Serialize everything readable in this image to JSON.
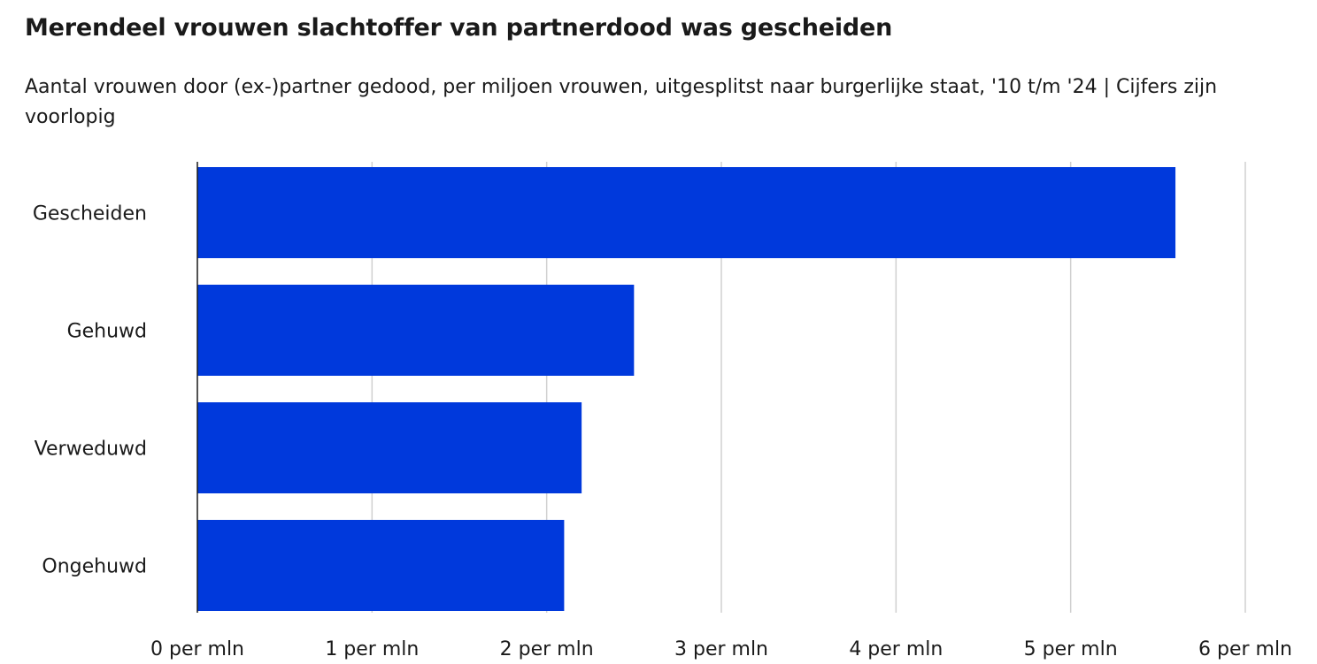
{
  "chart_data": {
    "type": "bar",
    "orientation": "horizontal",
    "title": "Merendeel vrouwen slachtoffer van partnerdood was gescheiden",
    "subtitle": "Aantal vrouwen door (ex-)partner gedood, per miljoen vrouwen, uitgesplitst naar burgerlijke staat, '10 t/m '24 | Cijfers zijn voorlopig",
    "categories": [
      "Gescheiden",
      "Gehuwd",
      "Verweduwd",
      "Ongehuwd"
    ],
    "values": [
      5.6,
      2.5,
      2.2,
      2.1
    ],
    "xlim": [
      0,
      6
    ],
    "x_ticks": [
      0,
      1,
      2,
      3,
      4,
      5,
      6
    ],
    "x_tick_labels": [
      "0 per mln",
      "1 per mln",
      "2 per mln",
      "3 per mln",
      "4 per mln",
      "5 per mln",
      "6 per mln"
    ],
    "bar_color": "#0039dc",
    "grid": true
  }
}
